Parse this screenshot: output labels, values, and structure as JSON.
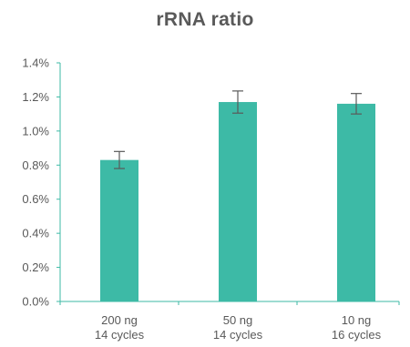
{
  "chart_data": {
    "type": "bar",
    "title": "rRNA  ratio",
    "categories": [
      [
        "200 ng",
        "14 cycles"
      ],
      [
        "50 ng",
        "14 cycles"
      ],
      [
        "10 ng",
        "16 cycles"
      ]
    ],
    "series": [
      {
        "values": [
          0.83,
          1.17,
          1.16
        ],
        "error": [
          0.05,
          0.065,
          0.06
        ]
      }
    ],
    "ylim": [
      0,
      1.4
    ],
    "yticks": [
      0.0,
      0.2,
      0.4,
      0.6,
      0.8,
      1.0,
      1.2,
      1.4
    ],
    "ytick_labels": [
      "0.0%",
      "0.2%",
      "0.4%",
      "0.6%",
      "0.8%",
      "1.0%",
      "1.2%",
      "1.4%"
    ],
    "xlabel": "",
    "ylabel": "",
    "grid": false,
    "legend": "none",
    "colors": {
      "bar": "#3dbaa6",
      "axis": "#3dbaa6",
      "error_bar": "#595959",
      "text": "#595959"
    }
  }
}
